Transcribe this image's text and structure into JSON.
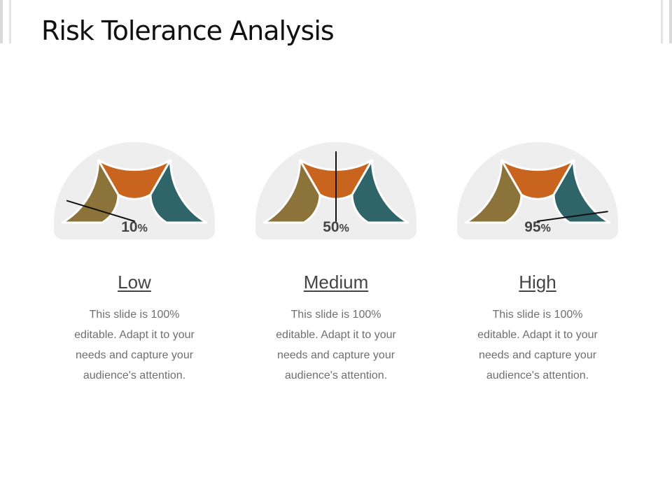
{
  "slide": {
    "title": "Risk Tolerance Analysis"
  },
  "colors": {
    "segment_low": "#8C7339",
    "segment_mid": "#C8641E",
    "segment_high": "#2F6468",
    "gauge_background": "#EEEEEE",
    "needle": "#111111"
  },
  "gauges": [
    {
      "value_number": "10",
      "value_unit": "%",
      "percent": 10,
      "label": "Low",
      "description": "This slide is 100% editable. Adapt it to your needs and capture your audience's attention."
    },
    {
      "value_number": "50",
      "value_unit": "%",
      "percent": 50,
      "label": "Medium",
      "description": "This slide is 100% editable. Adapt it to your needs and capture your audience's attention."
    },
    {
      "value_number": "95",
      "value_unit": "%",
      "percent": 95,
      "label": "High",
      "description": "This slide is 100% editable. Adapt it to your needs and capture your audience's attention."
    }
  ]
}
